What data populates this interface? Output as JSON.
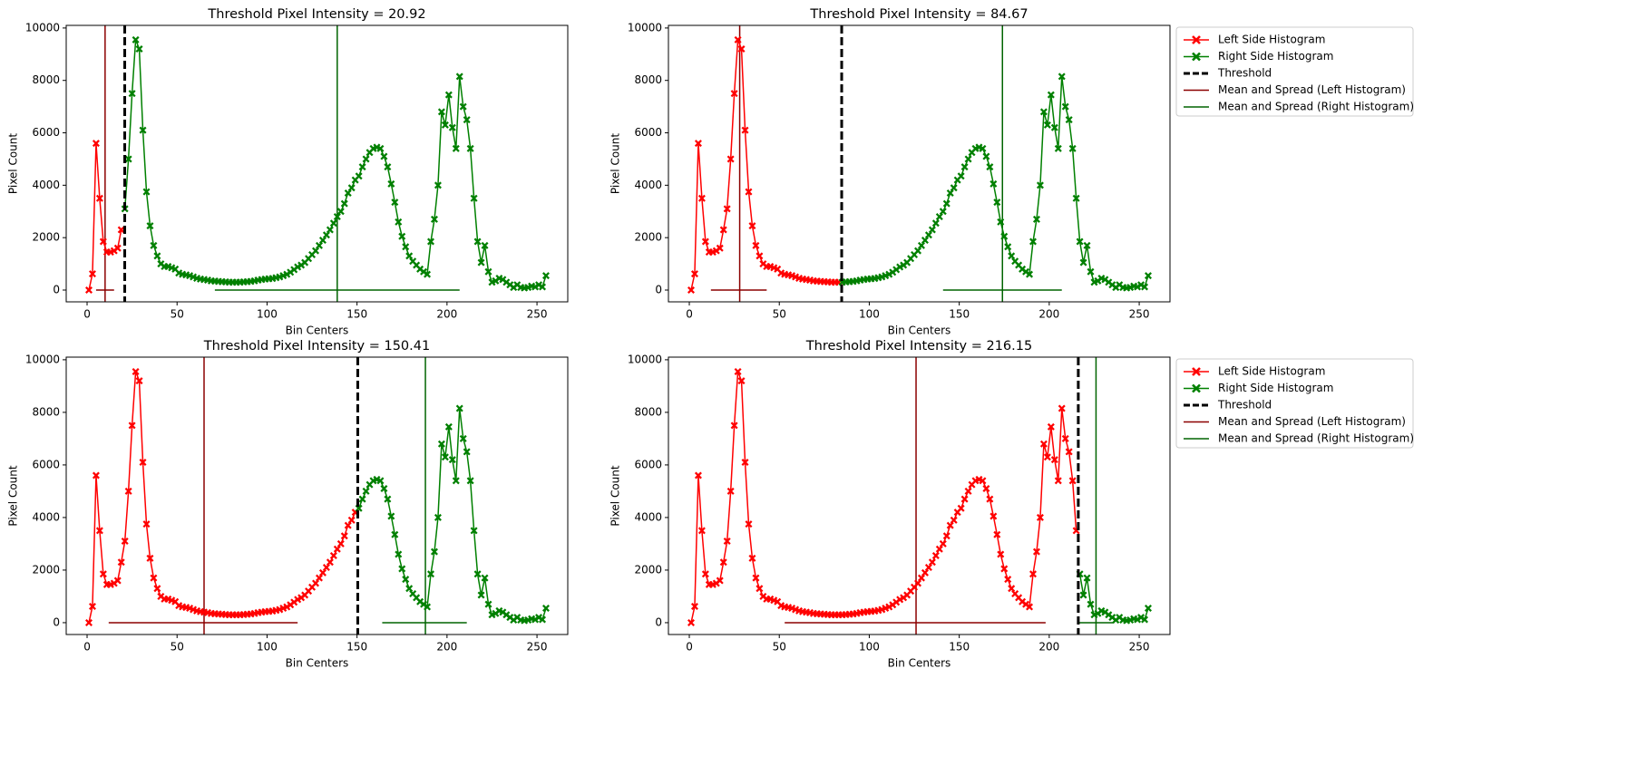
{
  "histogram": {
    "x": [
      1,
      3,
      5,
      7,
      9,
      11,
      13,
      15,
      17,
      19,
      21,
      23,
      25,
      27,
      29,
      31,
      33,
      35,
      37,
      39,
      41,
      43,
      45,
      47,
      49,
      51,
      53,
      55,
      57,
      59,
      61,
      63,
      65,
      67,
      69,
      71,
      73,
      75,
      77,
      79,
      81,
      83,
      85,
      87,
      89,
      91,
      93,
      95,
      97,
      99,
      101,
      103,
      105,
      107,
      109,
      111,
      113,
      115,
      117,
      119,
      121,
      123,
      125,
      127,
      129,
      131,
      133,
      135,
      137,
      139,
      141,
      143,
      145,
      147,
      149,
      151,
      153,
      155,
      157,
      159,
      161,
      163,
      165,
      167,
      169,
      171,
      173,
      175,
      177,
      179,
      181,
      183,
      185,
      187,
      189,
      191,
      193,
      195,
      197,
      199,
      201,
      203,
      205,
      207,
      209,
      211,
      213,
      215,
      217,
      219,
      221,
      223,
      225,
      227,
      229,
      231,
      233,
      235,
      237,
      239,
      241,
      243,
      245,
      247,
      249,
      251,
      253,
      255
    ],
    "values": [
      0,
      620,
      5600,
      3500,
      1850,
      1450,
      1450,
      1500,
      1600,
      2300,
      3100,
      5000,
      7500,
      9550,
      9200,
      6100,
      3750,
      2450,
      1700,
      1300,
      1000,
      900,
      900,
      850,
      800,
      650,
      600,
      580,
      550,
      500,
      450,
      420,
      400,
      380,
      350,
      340,
      330,
      320,
      310,
      300,
      300,
      300,
      300,
      310,
      320,
      330,
      350,
      380,
      400,
      420,
      430,
      440,
      470,
      500,
      550,
      600,
      680,
      780,
      880,
      950,
      1050,
      1200,
      1350,
      1500,
      1700,
      1900,
      2100,
      2300,
      2550,
      2800,
      3000,
      3300,
      3700,
      3900,
      4200,
      4350,
      4700,
      5000,
      5250,
      5400,
      5450,
      5400,
      5100,
      4700,
      4050,
      3350,
      2600,
      2050,
      1650,
      1300,
      1100,
      950,
      800,
      700,
      600,
      1850,
      2700,
      4000,
      6800,
      6300,
      7450,
      6200,
      5400,
      8150,
      7000,
      6500,
      5400,
      3500,
      1850,
      1050,
      1700,
      700,
      300,
      350,
      450,
      400,
      300,
      200,
      100,
      200,
      100,
      80,
      100,
      150,
      120,
      200,
      120,
      550
    ]
  },
  "chart_data": [
    {
      "type": "line",
      "title": "Threshold Pixel Intensity = 20.92",
      "threshold": 20.92,
      "x_label": "Bin Centers",
      "y_label": "Pixel Count",
      "xlim": [
        -11.6,
        267.1
      ],
      "ylim": [
        -450,
        10100
      ],
      "xticks": [
        0,
        50,
        100,
        150,
        200,
        250
      ],
      "yticks": [
        0,
        2000,
        4000,
        6000,
        8000,
        10000
      ],
      "left_mean": 10,
      "left_spread": [
        5,
        15
      ],
      "right_mean": 139,
      "right_spread": [
        71,
        207
      ],
      "colors": {
        "left": "#ff0000",
        "right": "#008000",
        "threshold": "#000000",
        "left_mean": "#8b0000",
        "right_mean": "#006400"
      }
    },
    {
      "type": "line",
      "title": "Threshold Pixel Intensity = 84.67",
      "threshold": 84.67,
      "x_label": "Bin Centers",
      "y_label": "Pixel Count",
      "xlim": [
        -11.6,
        267.1
      ],
      "ylim": [
        -450,
        10100
      ],
      "xticks": [
        0,
        50,
        100,
        150,
        200,
        250
      ],
      "yticks": [
        0,
        2000,
        4000,
        6000,
        8000,
        10000
      ],
      "left_mean": 28,
      "left_spread": [
        12,
        43
      ],
      "right_mean": 174,
      "right_spread": [
        141,
        207
      ],
      "colors": {
        "left": "#ff0000",
        "right": "#008000",
        "threshold": "#000000",
        "left_mean": "#8b0000",
        "right_mean": "#006400"
      },
      "legend": [
        "Left Side Histogram",
        "Right Side Histogram",
        "Threshold",
        "Mean and Spread (Left Histogram)",
        "Mean and Spread (Right Histogram)"
      ]
    },
    {
      "type": "line",
      "title": "Threshold Pixel Intensity = 150.41",
      "threshold": 150.41,
      "x_label": "Bin Centers",
      "y_label": "Pixel Count",
      "xlim": [
        -11.6,
        267.1
      ],
      "ylim": [
        -450,
        10100
      ],
      "xticks": [
        0,
        50,
        100,
        150,
        200,
        250
      ],
      "yticks": [
        0,
        2000,
        4000,
        6000,
        8000,
        10000
      ],
      "left_mean": 65,
      "left_spread": [
        12,
        117
      ],
      "right_mean": 188,
      "right_spread": [
        164,
        211
      ],
      "colors": {
        "left": "#ff0000",
        "right": "#008000",
        "threshold": "#000000",
        "left_mean": "#8b0000",
        "right_mean": "#006400"
      }
    },
    {
      "type": "line",
      "title": "Threshold Pixel Intensity = 216.15",
      "threshold": 216.15,
      "x_label": "Bin Centers",
      "y_label": "Pixel Count",
      "xlim": [
        -11.6,
        267.1
      ],
      "ylim": [
        -450,
        10100
      ],
      "xticks": [
        0,
        50,
        100,
        150,
        200,
        250
      ],
      "yticks": [
        0,
        2000,
        4000,
        6000,
        8000,
        10000
      ],
      "left_mean": 126,
      "left_spread": [
        53,
        198
      ],
      "right_mean": 226,
      "right_spread": [
        216,
        236
      ],
      "colors": {
        "left": "#ff0000",
        "right": "#008000",
        "threshold": "#000000",
        "left_mean": "#8b0000",
        "right_mean": "#006400"
      },
      "legend": [
        "Left Side Histogram",
        "Right Side Histogram",
        "Threshold",
        "Mean and Spread (Left Histogram)",
        "Mean and Spread (Right Histogram)"
      ]
    }
  ]
}
